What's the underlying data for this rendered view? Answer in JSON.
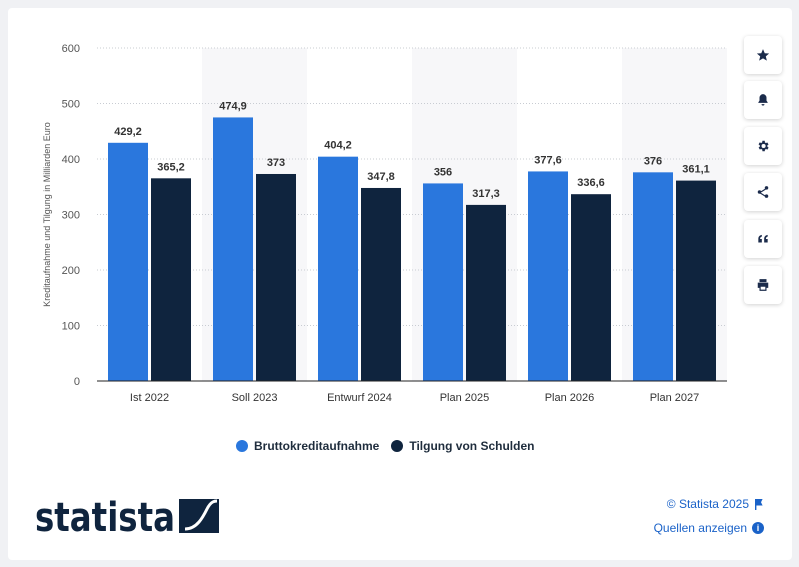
{
  "chart_data": {
    "type": "bar",
    "title": "",
    "xlabel": "",
    "ylabel": "Kreditaufnahme und Tilgung in Milliarden Euro",
    "ylim": [
      0,
      600
    ],
    "yticks": [
      "0",
      "100",
      "200",
      "300",
      "400",
      "500",
      "600"
    ],
    "categories": [
      "Ist 2022",
      "Soll 2023",
      "Entwurf 2024",
      "Plan 2025",
      "Plan 2026",
      "Plan 2027"
    ],
    "series": [
      {
        "name": "Bruttokreditaufnahme",
        "color": "#2a77dd",
        "values": [
          429.2,
          474.9,
          404.2,
          356,
          377.6,
          376
        ],
        "labels": [
          "429,2",
          "474,9",
          "404,2",
          "356",
          "377,6",
          "376"
        ]
      },
      {
        "name": "Tilgung von Schulden",
        "color": "#0f243e",
        "values": [
          365.2,
          373,
          347.8,
          317.3,
          336.6,
          361.1
        ],
        "labels": [
          "365,2",
          "373",
          "347,8",
          "317,3",
          "336,6",
          "361,1"
        ]
      }
    ],
    "grid": true,
    "legend": "bottom"
  },
  "legend": {
    "items": [
      {
        "label": "Bruttokreditaufnahme",
        "color": "#2a77dd"
      },
      {
        "label": "Tilgung von Schulden",
        "color": "#0f243e"
      }
    ]
  },
  "toolbar": {
    "icons": [
      "star-icon",
      "bell-icon",
      "gear-icon",
      "share-icon",
      "quote-icon",
      "print-icon"
    ]
  },
  "footer": {
    "brand": "statista",
    "copyright": "© Statista 2025",
    "sources": "Quellen anzeigen"
  }
}
